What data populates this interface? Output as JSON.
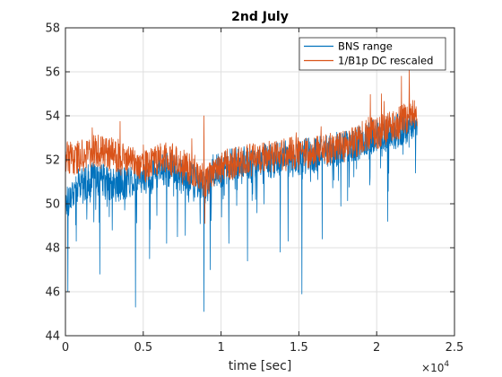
{
  "chart_data": {
    "type": "line",
    "title": "2nd July",
    "xlabel": "time [sec]",
    "ylabel": "",
    "x_exponent": "10",
    "x_exponent_power": "4",
    "xlim": [
      0,
      25000
    ],
    "ylim": [
      44,
      58
    ],
    "x_ticks": [
      0,
      5000,
      10000,
      15000,
      20000,
      25000
    ],
    "x_tick_labels": [
      "0",
      "0.5",
      "1",
      "1.5",
      "2",
      "2.5"
    ],
    "y_ticks": [
      44,
      46,
      48,
      50,
      52,
      54,
      56,
      58
    ],
    "y_tick_labels": [
      "44",
      "46",
      "48",
      "50",
      "52",
      "54",
      "56",
      "58"
    ],
    "grid": true,
    "legend_position": "top-right",
    "series": [
      {
        "name": "BNS range",
        "color": "#0072BD",
        "x": [
          0,
          500,
          1000,
          1500,
          2000,
          2500,
          3000,
          3500,
          4000,
          4500,
          5000,
          5500,
          6000,
          6500,
          7000,
          7500,
          8000,
          8500,
          9000,
          9500,
          10000,
          10500,
          11000,
          11500,
          12000,
          12500,
          13000,
          13500,
          14000,
          14500,
          15000,
          15500,
          16000,
          16500,
          17000,
          17500,
          18000,
          18500,
          19000,
          19500,
          20000,
          20500,
          21000,
          21500,
          22000,
          22600
        ],
        "values": [
          50.0,
          50.6,
          50.9,
          51.0,
          51.2,
          51.0,
          50.8,
          50.9,
          51.0,
          51.2,
          51.2,
          51.2,
          51.5,
          51.6,
          51.5,
          51.2,
          51.1,
          50.9,
          50.6,
          51.5,
          51.5,
          51.7,
          51.8,
          51.9,
          51.9,
          52.0,
          51.9,
          52.0,
          52.1,
          52.0,
          52.0,
          52.2,
          52.2,
          52.3,
          52.4,
          52.5,
          52.6,
          52.7,
          52.8,
          53.0,
          53.1,
          53.2,
          53.2,
          53.4,
          53.5,
          53.6
        ],
        "noise": 0.8,
        "dips": [
          {
            "x": 150,
            "y": 46.0
          },
          {
            "x": 700,
            "y": 48.3
          },
          {
            "x": 2200,
            "y": 46.8
          },
          {
            "x": 3000,
            "y": 48.8
          },
          {
            "x": 4500,
            "y": 45.3
          },
          {
            "x": 5400,
            "y": 47.5
          },
          {
            "x": 6500,
            "y": 48.2
          },
          {
            "x": 7200,
            "y": 48.5
          },
          {
            "x": 8900,
            "y": 45.1
          },
          {
            "x": 9300,
            "y": 47.0
          },
          {
            "x": 10500,
            "y": 48.2
          },
          {
            "x": 11700,
            "y": 47.4
          },
          {
            "x": 13800,
            "y": 47.8
          },
          {
            "x": 14300,
            "y": 48.3
          },
          {
            "x": 15200,
            "y": 45.9
          },
          {
            "x": 16500,
            "y": 48.4
          },
          {
            "x": 20700,
            "y": 49.2
          },
          {
            "x": 22500,
            "y": 51.4
          }
        ]
      },
      {
        "name": "1/B1p DC rescaled",
        "color": "#D95319",
        "x": [
          0,
          500,
          1000,
          1500,
          2000,
          2500,
          3000,
          3500,
          4000,
          4500,
          5000,
          5500,
          6000,
          6500,
          7000,
          7500,
          8000,
          8500,
          9000,
          9500,
          10000,
          10500,
          11000,
          11500,
          12000,
          12500,
          13000,
          13500,
          14000,
          14500,
          15000,
          15500,
          16000,
          16500,
          17000,
          17500,
          18000,
          18500,
          19000,
          19500,
          20000,
          20500,
          21000,
          21500,
          22000,
          22600
        ],
        "values": [
          52.2,
          52.0,
          52.2,
          52.4,
          52.4,
          52.3,
          52.2,
          52.2,
          52.0,
          51.9,
          51.8,
          51.8,
          52.0,
          52.1,
          51.9,
          51.8,
          51.6,
          51.4,
          51.0,
          51.4,
          51.6,
          51.8,
          51.9,
          52.0,
          52.0,
          52.0,
          52.1,
          52.2,
          52.2,
          52.3,
          52.3,
          52.3,
          52.3,
          52.4,
          52.4,
          52.5,
          52.6,
          52.8,
          53.0,
          53.2,
          53.2,
          53.4,
          53.5,
          53.7,
          53.9,
          54.2
        ],
        "noise": 0.75,
        "spikes": [
          {
            "x": 8900,
            "y": 54.0
          },
          {
            "x": 8950,
            "y": 49.1
          },
          {
            "x": 20300,
            "y": 55.0
          },
          {
            "x": 21600,
            "y": 55.8
          },
          {
            "x": 22100,
            "y": 56.2
          }
        ]
      }
    ]
  }
}
